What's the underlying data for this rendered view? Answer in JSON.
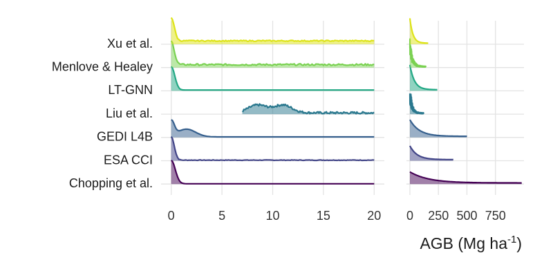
{
  "chart_data": {
    "type": "ridgeline",
    "panels": [
      {
        "name": "left",
        "xlim": [
          -1,
          21
        ],
        "xticks": [
          0,
          5,
          10,
          15,
          20
        ],
        "xtick_labels": [
          "0",
          "5",
          "10",
          "15",
          "20"
        ]
      },
      {
        "name": "right",
        "xlim": [
          -30,
          1000
        ],
        "xticks": [
          0,
          250,
          500,
          750
        ],
        "xtick_labels": [
          "0",
          "250",
          "500",
          "750"
        ]
      }
    ],
    "xlabel_main": "AGB (Mg ha",
    "xlabel_sup": "-1",
    "xlabel_tail": ")",
    "grid": true,
    "series": [
      {
        "name": "Xu et al.",
        "color": "#dde318",
        "left": {
          "range": [
            0,
            20
          ],
          "peak": [
            0,
            0.3
          ],
          "tail": 0.12,
          "wiggle": 0.04
        },
        "right": {
          "range": [
            0,
            160
          ],
          "profile": "decay",
          "peak_height": 0.9
        }
      },
      {
        "name": "Menlove & Healey",
        "color": "#7ad151",
        "left": {
          "range": [
            0,
            20
          ],
          "peak": [
            0,
            0.3
          ],
          "tail": 0.1,
          "wiggle": 0.06
        },
        "right": {
          "range": [
            0,
            140
          ],
          "profile": "spiky",
          "peak_height": 0.9
        }
      },
      {
        "name": "LT-GNN",
        "color": "#22a884",
        "left": {
          "range": [
            0,
            20
          ],
          "peak": [
            0,
            0.35
          ],
          "tail": 0.03,
          "wiggle": 0.0
        },
        "right": {
          "range": [
            0,
            240
          ],
          "profile": "decay",
          "peak_height": 0.9
        }
      },
      {
        "name": "Liu et al.",
        "color": "#2a788e",
        "left": {
          "range": [
            7,
            20
          ],
          "hump": [
            8.5,
            11
          ],
          "tail": 0.04,
          "wiggle": 0.08
        },
        "right": {
          "range": [
            0,
            120
          ],
          "profile": "spiky",
          "peak_height": 0.9
        }
      },
      {
        "name": "GEDI L4B",
        "color": "#355f8d",
        "left": {
          "range": [
            0,
            20
          ],
          "peak": [
            0,
            0.3
          ],
          "hump": [
            1.5
          ],
          "tail": 0.02,
          "wiggle": 0.0
        },
        "right": {
          "range": [
            0,
            500
          ],
          "profile": "decay",
          "peak_height": 0.6
        }
      },
      {
        "name": "ESA CCI",
        "color": "#414487",
        "left": {
          "range": [
            0,
            20
          ],
          "peak": [
            0,
            0.3
          ],
          "tail": 0.02,
          "wiggle": 0.02
        },
        "right": {
          "range": [
            0,
            380
          ],
          "profile": "decay",
          "peak_height": 0.5
        }
      },
      {
        "name": "Chopping et al.",
        "color": "#440154",
        "left": {
          "range": [
            0,
            20
          ],
          "peak": [
            0,
            0.4
          ],
          "tail": 0.01,
          "wiggle": 0.0
        },
        "right": {
          "range": [
            0,
            980
          ],
          "profile": "decay",
          "peak_height": 0.4
        }
      }
    ]
  }
}
